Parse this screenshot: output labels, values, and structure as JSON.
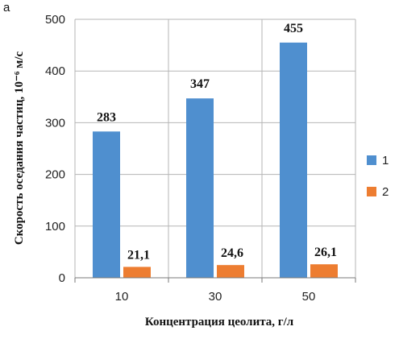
{
  "panel_label": "а",
  "chart_data": {
    "type": "bar",
    "categories": [
      "10",
      "30",
      "50"
    ],
    "series": [
      {
        "name": "1",
        "values": [
          283,
          347,
          455
        ],
        "labels": [
          "283",
          "347",
          "455"
        ],
        "color": "#4f8fcf"
      },
      {
        "name": "2",
        "values": [
          21.1,
          24.6,
          26.1
        ],
        "labels": [
          "21,1",
          "24,6",
          "26,1"
        ],
        "color": "#ed7d31"
      }
    ],
    "xlabel": "Концентрация цеолита, г/л",
    "ylabel": "Скорость оседания частиц, 10⁻⁶ м/с",
    "ylim": [
      0,
      500
    ],
    "yticks": [
      "0",
      "100",
      "200",
      "300",
      "400",
      "500"
    ],
    "grid": true,
    "legend_position": "right"
  }
}
